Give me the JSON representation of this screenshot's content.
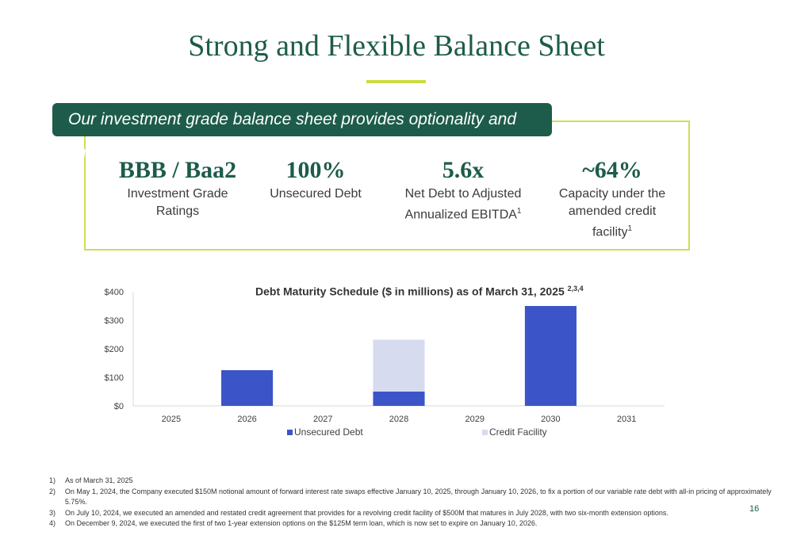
{
  "title": "Strong and Flexible Balance Sheet",
  "banner": "Our investment grade balance sheet provides optionality and ample liquidity",
  "kpis": [
    {
      "value": "BBB / Baa2",
      "label": "Investment Grade Ratings",
      "sup": ""
    },
    {
      "value": "100%",
      "label": "Unsecured Debt",
      "sup": ""
    },
    {
      "value": "5.6x",
      "label": "Net Debt to Adjusted Annualized EBITDA",
      "sup": "1"
    },
    {
      "value": "~64%",
      "label": "Capacity under the amended credit facility",
      "sup": "1"
    }
  ],
  "chart_title": "Debt Maturity Schedule ($ in millions) as of March 31, 2025",
  "chart_title_sup": "2,3,4",
  "chart_data": {
    "type": "bar",
    "stacked": true,
    "categories": [
      "2025",
      "2026",
      "2027",
      "2028",
      "2029",
      "2030",
      "2031"
    ],
    "series": [
      {
        "name": "Unsecured Debt",
        "values": [
          0,
          125,
          0,
          50,
          0,
          350,
          0
        ],
        "color": "#3b55c9"
      },
      {
        "name": "Credit Facility",
        "values": [
          0,
          0,
          0,
          182,
          0,
          0,
          0
        ],
        "color": "#d6dbf0"
      }
    ],
    "ylim": [
      0,
      400
    ],
    "yticks": [
      0,
      100,
      200,
      300,
      400
    ],
    "ytick_labels": [
      "$0",
      "$100",
      "$200",
      "$300",
      "$400"
    ],
    "legend_position": "bottom",
    "grid": false
  },
  "footnotes": [
    {
      "num": "1)",
      "text": "As of March 31, 2025"
    },
    {
      "num": "2)",
      "text": "On May 1, 2024, the Company executed $150M notional amount of forward interest rate swaps effective January 10, 2025, through January 10, 2026, to fix a portion of our variable rate debt with all-in pricing of approximately 5.75%."
    },
    {
      "num": "3)",
      "text": "On July 10, 2024, we executed an amended and restated credit agreement that provides for a revolving credit facility of $500M that matures in July 2028, with two six-month extension options."
    },
    {
      "num": "4)",
      "text": "On December 9, 2024, we executed the first of two 1-year extension options on the $125M term loan, which is now set to expire on January 10, 2026."
    }
  ],
  "page_number": "16",
  "colors": {
    "brand_green": "#1d5c4a",
    "accent_lime": "#cbdc3f"
  }
}
